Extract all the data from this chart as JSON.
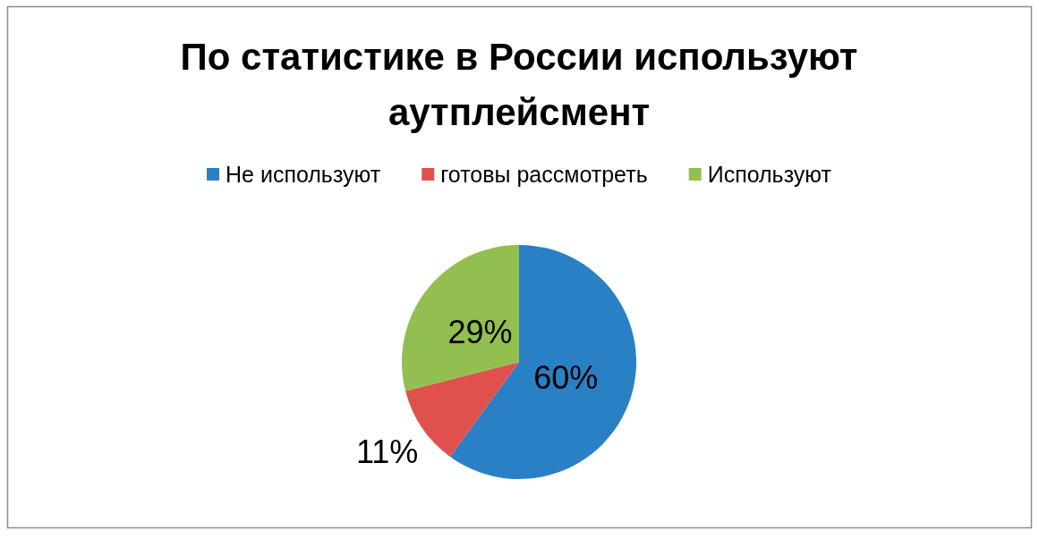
{
  "chart_data": {
    "type": "pie",
    "title": "По статистике в России используют аутплейсмент",
    "categories": [
      "Не используют",
      "готовы рассмотреть",
      "Используют"
    ],
    "values": [
      60,
      11,
      29
    ],
    "value_labels": [
      "60%",
      "11%",
      "29%"
    ],
    "colors": [
      "#2a80c4",
      "#e0504d",
      "#92bf4f"
    ],
    "legend": "top"
  }
}
